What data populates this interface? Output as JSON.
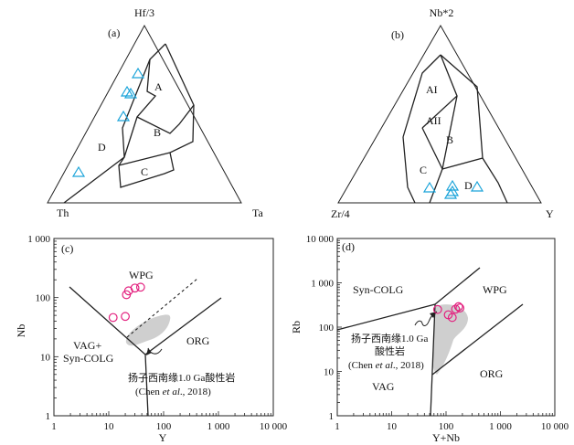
{
  "panel_a": {
    "letter": "(a)",
    "apex_top": "Hf/3",
    "apex_left": "Th",
    "apex_right": "Ta",
    "fields": {
      "A": "A",
      "B": "B",
      "C": "C",
      "D": "D"
    }
  },
  "panel_b": {
    "letter": "(b)",
    "apex_top": "Nb*2",
    "apex_left": "Zr/4",
    "apex_right": "Y",
    "fields": {
      "AI": "AI",
      "AII": "AII",
      "B": "B",
      "C": "C",
      "D": "D"
    }
  },
  "panel_c": {
    "letter": "(c)",
    "ylabel": "Nb",
    "xlabel": "Y",
    "yticks": [
      "1 000",
      "100",
      "10",
      "1"
    ],
    "xticks": [
      "1",
      "10",
      "100",
      "1 000",
      "10 000"
    ],
    "fields": {
      "wpg": "WPG",
      "vag": "VAG+",
      "syn": "Syn-COLG",
      "org": "ORG"
    },
    "annotation_cn": "扬子西南缘1.0 Ga酸性岩",
    "annotation_ref_pre": "(Chen ",
    "annotation_ref_em": "et al",
    "annotation_ref_post": "., 2018)"
  },
  "panel_d": {
    "letter": "(d)",
    "ylabel": "Rb",
    "xlabel": "Y+Nb",
    "yticks": [
      "10 000",
      "1 000",
      "100",
      "10",
      "1"
    ],
    "xticks": [
      "1",
      "10",
      "100",
      "1 000",
      "10 000"
    ],
    "fields": {
      "syn": "Syn-COLG",
      "wpg": "WPG",
      "vag": "VAG",
      "org": "ORG"
    },
    "annotation_cn_1": "扬子西南缘1.0 Ga",
    "annotation_cn_2": "酸性岩",
    "annotation_ref_pre": "(Chen ",
    "annotation_ref_em": "et al",
    "annotation_ref_post": "., 2018)"
  },
  "colors": {
    "triangle_symbol": "#1aa3d9",
    "circle_symbol": "#e3217f",
    "shaded_field": "#cfcfcf"
  },
  "chart_data": [
    {
      "type": "scatter",
      "panel": "c",
      "xlabel": "Y",
      "ylabel": "Nb",
      "xscale": "log",
      "yscale": "log",
      "xlim": [
        1,
        10000
      ],
      "ylim": [
        1,
        1000
      ],
      "series": [
        {
          "values": [
            [
              12,
              46
            ],
            [
              20,
              48
            ],
            [
              21,
              112
            ],
            [
              23,
              130
            ],
            [
              30,
              145
            ],
            [
              38,
              150
            ]
          ]
        }
      ]
    },
    {
      "type": "scatter",
      "panel": "d",
      "xlabel": "Y+Nb",
      "ylabel": "Rb",
      "xscale": "log",
      "yscale": "log",
      "xlim": [
        1,
        10000
      ],
      "ylim": [
        1,
        10000
      ],
      "series": [
        {
          "values": [
            [
              70,
              250
            ],
            [
              110,
              190
            ],
            [
              130,
              165
            ],
            [
              150,
              255
            ],
            [
              170,
              290
            ],
            [
              180,
              270
            ]
          ]
        }
      ]
    }
  ]
}
